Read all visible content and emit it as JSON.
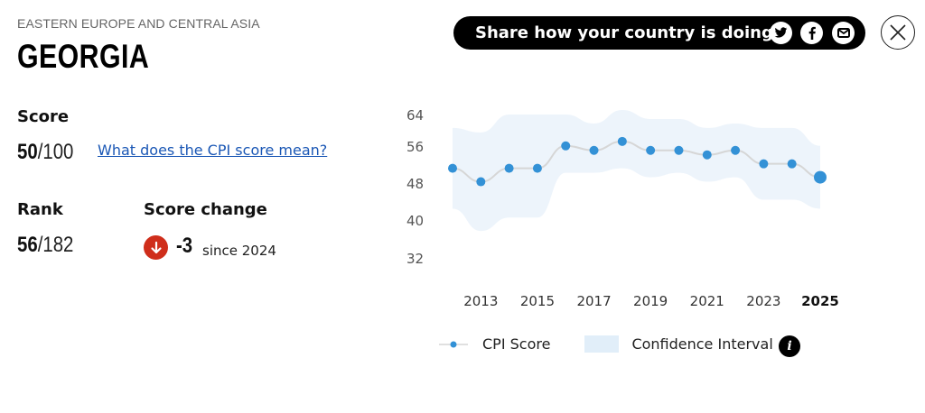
{
  "header": {
    "region": "EASTERN EUROPE AND CENTRAL ASIA",
    "country": "GEORGIA"
  },
  "share": {
    "label": "Share how your country is doing",
    "icons": [
      "twitter-icon",
      "facebook-icon",
      "email-icon"
    ]
  },
  "close_icon": "close-icon",
  "score": {
    "label": "Score",
    "value": "50",
    "max": "/100",
    "link": "What does the CPI score mean?"
  },
  "rank": {
    "label": "Rank",
    "value": "56",
    "max": "/182"
  },
  "score_change": {
    "label": "Score change",
    "value": "-3",
    "since": "since 2024",
    "direction": "down",
    "color": "#cf2e1b"
  },
  "legend": {
    "series_label": "CPI Score",
    "ci_label": "Confidence Interval",
    "info_glyph": "i"
  },
  "colors": {
    "point": "#3391d6",
    "line": "#d6d6d6",
    "ci_fill": "#edf4fb",
    "link": "#1a57b5"
  },
  "chart_data": {
    "type": "line",
    "title": "",
    "xlabel": "",
    "ylabel": "",
    "x": [
      2012,
      2013,
      2014,
      2015,
      2016,
      2017,
      2018,
      2019,
      2020,
      2021,
      2022,
      2023,
      2024,
      2025
    ],
    "x_tick_labels": [
      "2013",
      "2015",
      "2017",
      "2019",
      "2021",
      "2023",
      "2025"
    ],
    "y_tick_labels": [
      "64",
      "56",
      "48",
      "40",
      "32"
    ],
    "ylim": [
      32,
      64
    ],
    "grid": false,
    "legend_position": "bottom",
    "series": [
      {
        "name": "CPI Score",
        "values": [
          52,
          49,
          52,
          52,
          57,
          56,
          58,
          56,
          56,
          55,
          56,
          53,
          53,
          50
        ]
      },
      {
        "name": "Confidence Interval",
        "type": "area",
        "upper": [
          61,
          60,
          64,
          64,
          64,
          62,
          65,
          63,
          63,
          61,
          62,
          61,
          61,
          57
        ],
        "lower": [
          43,
          38,
          41,
          41,
          51,
          51,
          52,
          50,
          51,
          49,
          50,
          45,
          45,
          43
        ]
      }
    ]
  }
}
